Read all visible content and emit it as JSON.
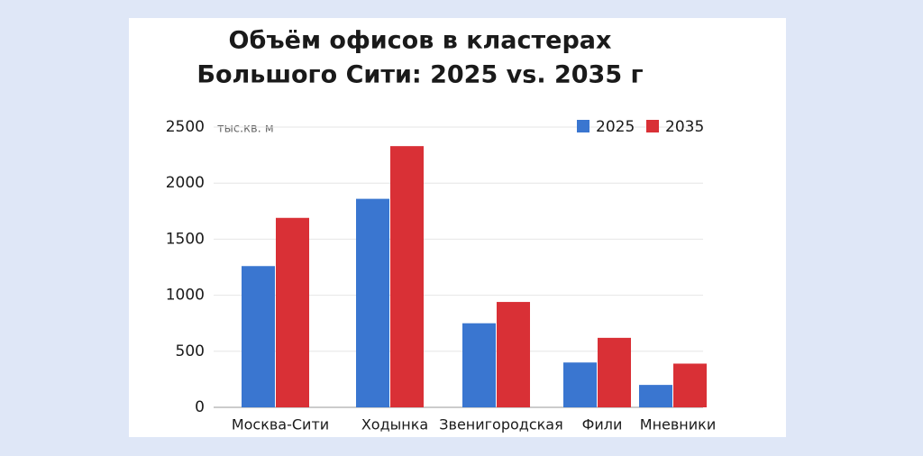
{
  "chart_data": {
    "type": "bar",
    "title": [
      "Объём офисов в кластерах",
      "Большого Сити: 2025 vs. 2035 г"
    ],
    "y_label": "тыс.кв. м",
    "categories": [
      "Москва-Сити",
      "Ходынка",
      "Звенигородская",
      "Фили",
      "Мневники"
    ],
    "series": [
      {
        "name": "2025",
        "color": "#3a76d0",
        "values": [
          1260,
          1860,
          750,
          400,
          200
        ]
      },
      {
        "name": "2035",
        "color": "#d93036",
        "values": [
          1690,
          2330,
          940,
          620,
          390
        ]
      }
    ],
    "ylim": [
      0,
      2500
    ],
    "yticks": [
      0,
      500,
      1000,
      1500,
      2000,
      2500
    ],
    "grid": true,
    "legend": "top-right"
  }
}
